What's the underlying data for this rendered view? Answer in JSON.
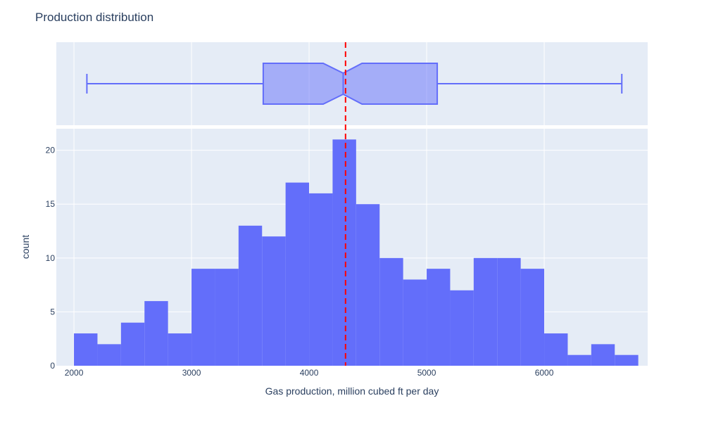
{
  "chart_data": {
    "type": "bar",
    "subtype": "histogram with marginal notched box plot",
    "title": "Production distribution",
    "xlabel": "Gas production, million cubed ft per day",
    "ylabel": "count",
    "xlim": [
      1850,
      6880
    ],
    "ylim": [
      0,
      22
    ],
    "x_ticks": [
      2000,
      3000,
      4000,
      5000,
      6000
    ],
    "y_ticks": [
      0,
      5,
      10,
      15,
      20
    ],
    "bin_width": 200,
    "bin_starts": [
      2000,
      2200,
      2400,
      2600,
      2800,
      3000,
      3200,
      3400,
      3600,
      3800,
      4000,
      4200,
      4400,
      4600,
      4800,
      5000,
      5200,
      5400,
      5600,
      5800,
      6000,
      6200,
      6400,
      6600
    ],
    "counts": [
      3,
      2,
      4,
      6,
      3,
      9,
      9,
      13,
      12,
      17,
      16,
      21,
      15,
      10,
      8,
      9,
      7,
      10,
      10,
      9,
      3,
      1,
      2,
      1
    ],
    "box": {
      "lower_whisker": 2110,
      "q1": 3610,
      "median": 4290,
      "q3": 5090,
      "upper_whisker": 6660,
      "notch_low": 4120,
      "notch_high": 4450,
      "notched": true
    },
    "reference_line": {
      "x": 4310,
      "color": "#ff0000",
      "dash": "dash"
    },
    "colors": {
      "bar": "#636efa",
      "box_fill": "rgba(99,110,250,0.5)",
      "box_line": "#636efa",
      "plot_bg": "#e5ecf6",
      "grid": "#ffffff",
      "text": "#2a3f5f"
    },
    "grid": true,
    "legend": "none"
  }
}
